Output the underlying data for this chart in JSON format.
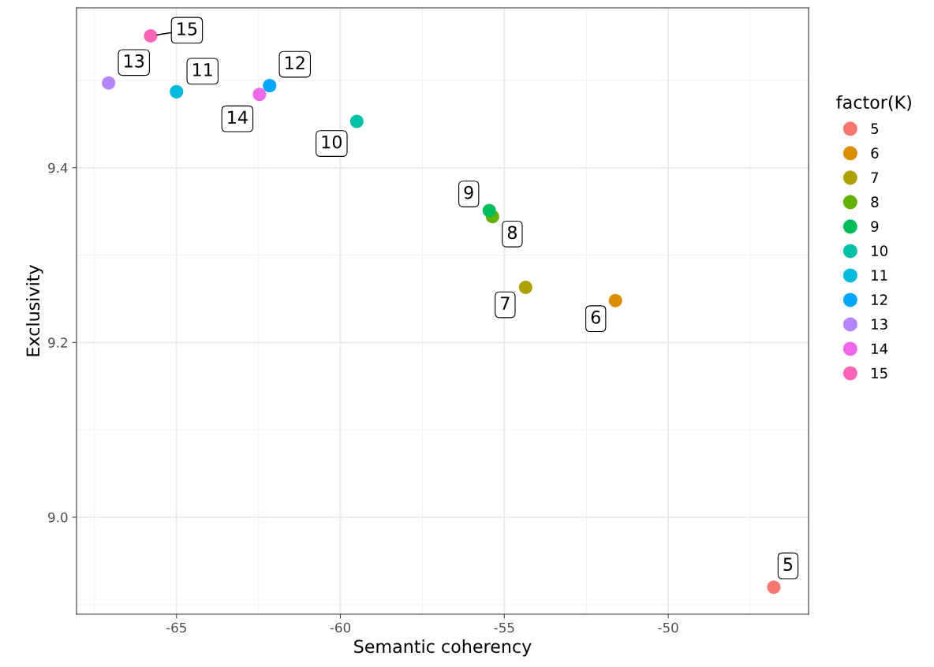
{
  "chart_data": {
    "type": "scatter",
    "xlabel": "Semantic coherency",
    "ylabel": "Exclusivity",
    "legend_title": "factor(K)",
    "legend": "right",
    "grid": true,
    "marker": "circle",
    "xlim": [
      -68.05,
      -45.72
    ],
    "ylim": [
      8.889,
      9.583
    ],
    "xticks": [
      -65,
      -60,
      -55,
      -50
    ],
    "yticks": [
      {
        "value": 9.0,
        "label": "9.0"
      },
      9.2,
      9.4
    ],
    "series": [
      {
        "name": "5",
        "color": "#F8766D",
        "x": [
          -46.78
        ],
        "values": [
          8.92
        ]
      },
      {
        "name": "6",
        "color": "#DB8E00",
        "x": [
          -51.61
        ],
        "values": [
          9.248
        ]
      },
      {
        "name": "7",
        "color": "#AEA200",
        "x": [
          -54.35
        ],
        "values": [
          9.263
        ]
      },
      {
        "name": "8",
        "color": "#64B200",
        "x": [
          -55.36
        ],
        "values": [
          9.344
        ]
      },
      {
        "name": "9",
        "color": "#00BD5C",
        "x": [
          -55.46
        ],
        "values": [
          9.351
        ]
      },
      {
        "name": "10",
        "color": "#00C1A7",
        "x": [
          -59.5
        ],
        "values": [
          9.453
        ]
      },
      {
        "name": "11",
        "color": "#00BADE",
        "x": [
          -65.0
        ],
        "values": [
          9.487
        ]
      },
      {
        "name": "12",
        "color": "#00A6FF",
        "x": [
          -62.16
        ],
        "values": [
          9.494
        ]
      },
      {
        "name": "13",
        "color": "#B385FF",
        "x": [
          -67.07
        ],
        "values": [
          9.497
        ]
      },
      {
        "name": "14",
        "color": "#EF67EB",
        "x": [
          -62.47
        ],
        "values": [
          9.484
        ]
      },
      {
        "name": "15",
        "color": "#FF63B6",
        "x": [
          -65.79
        ],
        "values": [
          9.551
        ]
      }
    ]
  }
}
